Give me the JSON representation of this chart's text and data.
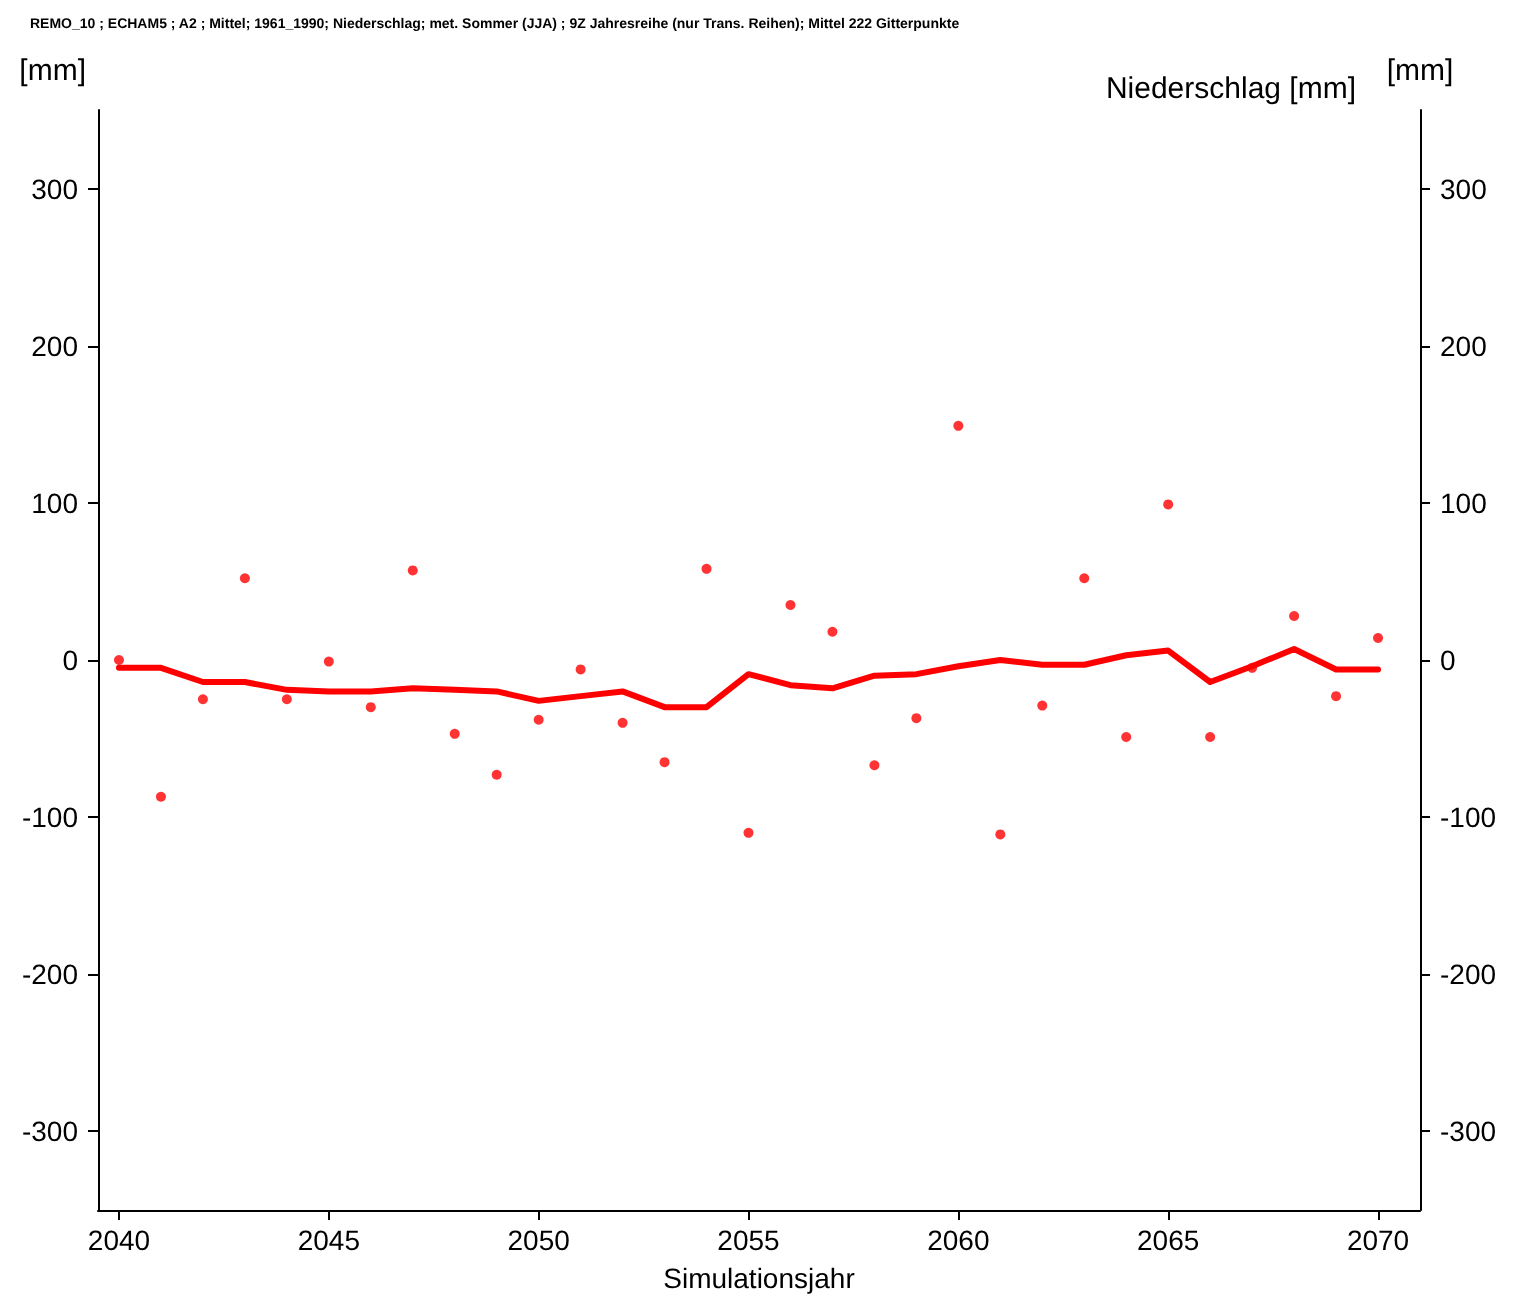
{
  "chart_data": {
    "type": "scatter",
    "title": "Niederschlag [mm]",
    "xlabel": "Simulationsjahr",
    "ylabel": "[mm]",
    "y2label": "[mm]",
    "annotations": [
      "REMO_10 ; ECHAM5 ; A2 ; Mittel; 1961_1990; Niederschlag; met. Sommer (JJA) ; 9Z Jahresreihe (nur Trans. Reihen); Mittel 222 Gitterpunkte"
    ],
    "xlim": [
      2039.5,
      2071
    ],
    "xticks": [
      2040,
      2045,
      2050,
      2055,
      2060,
      2065,
      2070
    ],
    "ylim": [
      -350,
      350
    ],
    "yticks": [
      -300,
      -200,
      -100,
      0,
      100,
      200,
      300
    ],
    "y2lim": [
      -350,
      350
    ],
    "y2ticks": [
      -300,
      -200,
      -100,
      0,
      100,
      200,
      300
    ],
    "grid": false,
    "series": [
      {
        "color": "#ff0000",
        "marker": "circle",
        "x": [
          2040,
          2041,
          2042,
          2043,
          2044,
          2045,
          2046,
          2047,
          2048,
          2049,
          2050,
          2051,
          2052,
          2053,
          2054,
          2055,
          2056,
          2057,
          2058,
          2059,
          2060,
          2061,
          2062,
          2063,
          2064,
          2065,
          2066,
          2067,
          2068,
          2069,
          2070
        ],
        "values": [
          0,
          -87,
          -25,
          52,
          -25,
          -1,
          -30,
          57,
          -47,
          -73,
          -38,
          -6,
          -40,
          -65,
          58,
          -110,
          35,
          18,
          -67,
          -37,
          149,
          -111,
          -29,
          52,
          -49,
          99,
          -49,
          -5,
          28,
          -23,
          14
        ]
      },
      {
        "type": "line",
        "color": "#ff0000",
        "marker": "none",
        "line_style": "solid",
        "x": [
          2040,
          2041,
          2042,
          2043,
          2044,
          2045,
          2046,
          2047,
          2048,
          2049,
          2050,
          2051,
          2052,
          2053,
          2054,
          2055,
          2056,
          2057,
          2058,
          2059,
          2060,
          2061,
          2062,
          2063,
          2064,
          2065,
          2066,
          2067,
          2068,
          2069,
          2070
        ],
        "values": [
          -5,
          -5,
          -14,
          -14,
          -19,
          -20,
          -20,
          -18,
          -19,
          -20,
          -26,
          -23,
          -20,
          -30,
          -30,
          -9,
          -16,
          -18,
          -10,
          -9,
          -4,
          0,
          -3,
          -3,
          3,
          6,
          -14,
          -4,
          7,
          -6,
          -6
        ]
      }
    ]
  }
}
